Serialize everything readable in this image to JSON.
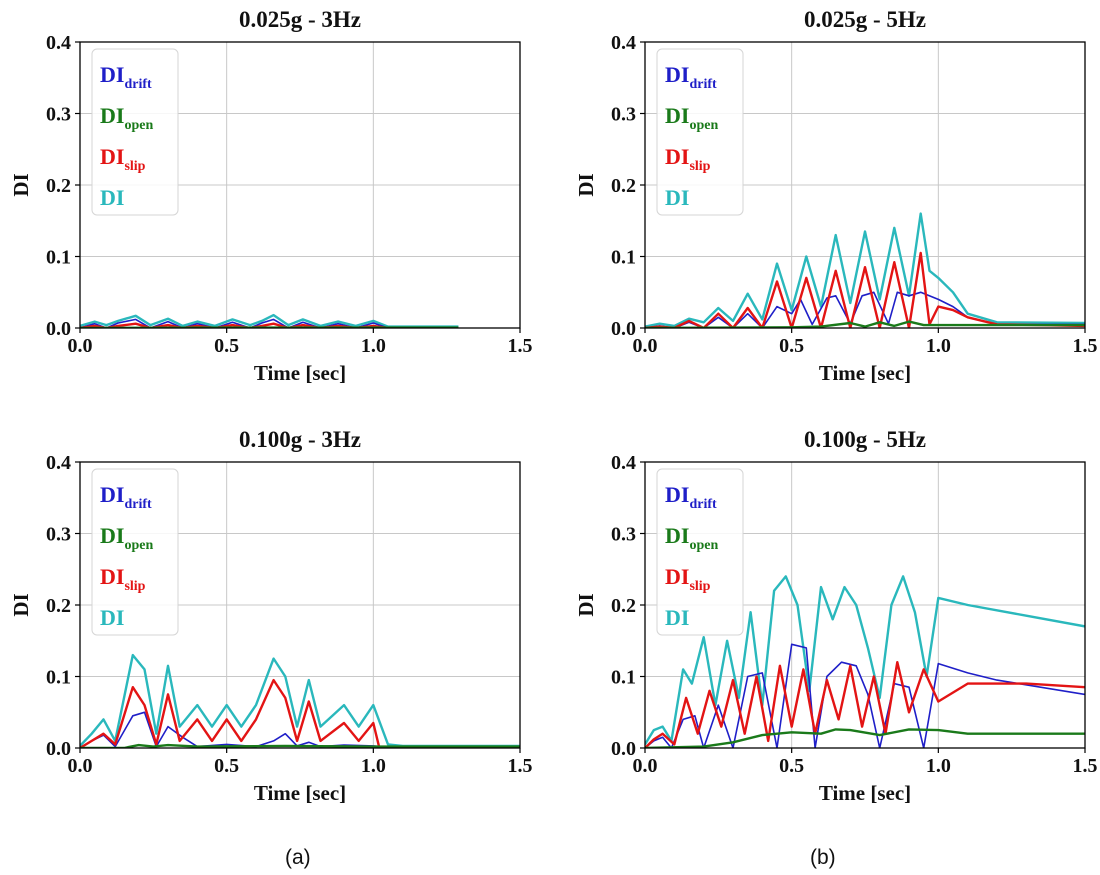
{
  "figure": {
    "captions": [
      "(a)",
      "(b)"
    ]
  },
  "colors": {
    "drift": "#1f1fc8",
    "open": "#1a7a1a",
    "slip": "#e31414",
    "total": "#2ab8bc"
  },
  "chart_data": [
    {
      "type": "line",
      "title": "0.025g - 3Hz",
      "xlabel": "Time [sec]",
      "ylabel": "DI",
      "xlim": [
        0,
        1.5
      ],
      "ylim": [
        0,
        0.4
      ],
      "xticks": [
        "0.0",
        "0.5",
        "1.0",
        "1.5"
      ],
      "yticks": [
        "0.0",
        "0.1",
        "0.2",
        "0.3",
        "0.4"
      ],
      "grid": true,
      "legend_position": "top-left",
      "series": [
        {
          "name": "DI_drift",
          "label_main": "DI",
          "label_sub": "drift",
          "key": "drift",
          "x": [
            0.0,
            0.05,
            0.09,
            0.13,
            0.19,
            0.24,
            0.3,
            0.35,
            0.4,
            0.46,
            0.52,
            0.58,
            0.62,
            0.66,
            0.71,
            0.76,
            0.82,
            0.88,
            0.94,
            1.0,
            1.05,
            1.1,
            1.29
          ],
          "y": [
            0.0,
            0.006,
            0.0,
            0.007,
            0.012,
            0.0,
            0.009,
            0.0,
            0.006,
            0.0,
            0.008,
            0.0,
            0.007,
            0.012,
            0.0,
            0.008,
            0.0,
            0.006,
            0.0,
            0.007,
            0.0,
            0.001,
            0.001
          ]
        },
        {
          "name": "DI_open",
          "label_main": "DI",
          "label_sub": "open",
          "key": "open",
          "x": [
            0.0,
            0.5,
            1.0,
            1.29
          ],
          "y": [
            0.0,
            0.0005,
            0.0005,
            0.0005
          ]
        },
        {
          "name": "DI_slip",
          "label_main": "DI",
          "label_sub": "slip",
          "key": "slip",
          "x": [
            0.0,
            0.05,
            0.09,
            0.13,
            0.19,
            0.24,
            0.3,
            0.35,
            0.4,
            0.46,
            0.52,
            0.58,
            0.62,
            0.66,
            0.71,
            0.76,
            0.82,
            0.88,
            0.94,
            1.0,
            1.05,
            1.29
          ],
          "y": [
            0.0,
            0.003,
            0.0,
            0.003,
            0.006,
            0.0,
            0.004,
            0.0,
            0.003,
            0.0,
            0.004,
            0.0,
            0.003,
            0.006,
            0.0,
            0.004,
            0.0,
            0.003,
            0.0,
            0.003,
            0.0,
            0.0
          ]
        },
        {
          "name": "DI",
          "label_main": "DI",
          "label_sub": "",
          "key": "total",
          "x": [
            0.0,
            0.05,
            0.09,
            0.13,
            0.19,
            0.24,
            0.3,
            0.35,
            0.4,
            0.46,
            0.52,
            0.58,
            0.62,
            0.66,
            0.71,
            0.76,
            0.82,
            0.88,
            0.94,
            1.0,
            1.05,
            1.1,
            1.29
          ],
          "y": [
            0.003,
            0.009,
            0.004,
            0.01,
            0.017,
            0.004,
            0.013,
            0.003,
            0.009,
            0.003,
            0.012,
            0.004,
            0.01,
            0.018,
            0.004,
            0.012,
            0.003,
            0.009,
            0.003,
            0.01,
            0.002,
            0.002,
            0.002
          ]
        }
      ]
    },
    {
      "type": "line",
      "title": "0.025g - 5Hz",
      "xlabel": "Time [sec]",
      "ylabel": "DI",
      "xlim": [
        0,
        1.5
      ],
      "ylim": [
        0,
        0.4
      ],
      "xticks": [
        "0.0",
        "0.5",
        "1.0",
        "1.5"
      ],
      "yticks": [
        "0.0",
        "0.1",
        "0.2",
        "0.3",
        "0.4"
      ],
      "grid": true,
      "legend_position": "top-left",
      "series": [
        {
          "name": "DI_drift",
          "label_main": "DI",
          "label_sub": "drift",
          "key": "drift",
          "x": [
            0.0,
            0.05,
            0.1,
            0.15,
            0.2,
            0.25,
            0.3,
            0.35,
            0.4,
            0.45,
            0.5,
            0.53,
            0.57,
            0.62,
            0.65,
            0.7,
            0.74,
            0.78,
            0.83,
            0.86,
            0.9,
            0.94,
            1.0,
            1.05,
            1.1,
            1.2,
            1.5
          ],
          "y": [
            0.0,
            0.003,
            0.0,
            0.008,
            0.0,
            0.015,
            0.0,
            0.02,
            0.0,
            0.03,
            0.02,
            0.04,
            0.005,
            0.042,
            0.045,
            0.006,
            0.045,
            0.05,
            0.006,
            0.05,
            0.045,
            0.05,
            0.04,
            0.03,
            0.015,
            0.005,
            0.005
          ]
        },
        {
          "name": "DI_open",
          "label_main": "DI",
          "label_sub": "open",
          "key": "open",
          "x": [
            0.0,
            0.5,
            0.6,
            0.7,
            0.75,
            0.8,
            0.85,
            0.9,
            0.95,
            1.0,
            1.2,
            1.5
          ],
          "y": [
            0.0,
            0.001,
            0.002,
            0.007,
            0.002,
            0.008,
            0.003,
            0.009,
            0.004,
            0.004,
            0.004,
            0.004
          ]
        },
        {
          "name": "DI_slip",
          "label_main": "DI",
          "label_sub": "slip",
          "key": "slip",
          "x": [
            0.0,
            0.05,
            0.1,
            0.15,
            0.2,
            0.25,
            0.3,
            0.35,
            0.4,
            0.45,
            0.5,
            0.55,
            0.6,
            0.65,
            0.7,
            0.75,
            0.8,
            0.85,
            0.9,
            0.94,
            0.97,
            1.0,
            1.05,
            1.1,
            1.2,
            1.5
          ],
          "y": [
            0.0,
            0.002,
            0.0,
            0.01,
            0.0,
            0.02,
            0.0,
            0.028,
            0.0,
            0.065,
            0.0,
            0.07,
            0.0,
            0.08,
            0.0,
            0.085,
            0.0,
            0.092,
            0.0,
            0.105,
            0.005,
            0.03,
            0.025,
            0.015,
            0.005,
            0.003
          ]
        },
        {
          "name": "DI",
          "label_main": "DI",
          "label_sub": "",
          "key": "total",
          "x": [
            0.0,
            0.05,
            0.1,
            0.15,
            0.2,
            0.25,
            0.3,
            0.35,
            0.4,
            0.45,
            0.5,
            0.55,
            0.6,
            0.65,
            0.7,
            0.75,
            0.8,
            0.85,
            0.9,
            0.94,
            0.97,
            1.0,
            1.05,
            1.1,
            1.2,
            1.5
          ],
          "y": [
            0.002,
            0.006,
            0.003,
            0.013,
            0.008,
            0.028,
            0.01,
            0.048,
            0.012,
            0.09,
            0.025,
            0.1,
            0.03,
            0.13,
            0.035,
            0.135,
            0.04,
            0.14,
            0.045,
            0.16,
            0.08,
            0.07,
            0.05,
            0.02,
            0.008,
            0.007
          ]
        }
      ]
    },
    {
      "type": "line",
      "title": "0.100g - 3Hz",
      "xlabel": "Time [sec]",
      "ylabel": "DI",
      "xlim": [
        0,
        1.5
      ],
      "ylim": [
        0,
        0.4
      ],
      "xticks": [
        "0.0",
        "0.5",
        "1.0",
        "1.5"
      ],
      "yticks": [
        "0.0",
        "0.1",
        "0.2",
        "0.3",
        "0.4"
      ],
      "grid": true,
      "legend_position": "top-left",
      "series": [
        {
          "name": "DI_drift",
          "label_main": "DI",
          "label_sub": "drift",
          "key": "drift",
          "x": [
            0.0,
            0.04,
            0.08,
            0.12,
            0.18,
            0.22,
            0.26,
            0.3,
            0.35,
            0.4,
            0.5,
            0.6,
            0.66,
            0.7,
            0.74,
            0.78,
            0.82,
            0.9,
            1.0,
            1.05,
            1.5
          ],
          "y": [
            0.0,
            0.01,
            0.018,
            0.002,
            0.045,
            0.05,
            0.002,
            0.03,
            0.015,
            0.002,
            0.005,
            0.002,
            0.01,
            0.02,
            0.003,
            0.008,
            0.002,
            0.004,
            0.003,
            0.001,
            0.001
          ]
        },
        {
          "name": "DI_open",
          "label_main": "DI",
          "label_sub": "open",
          "key": "open",
          "x": [
            0.0,
            0.15,
            0.2,
            0.25,
            0.3,
            0.4,
            0.7,
            1.0,
            1.5
          ],
          "y": [
            0.0,
            0.0,
            0.004,
            0.002,
            0.004,
            0.002,
            0.003,
            0.002,
            0.002
          ]
        },
        {
          "name": "DI_slip",
          "label_main": "DI",
          "label_sub": "slip",
          "key": "slip",
          "x": [
            0.0,
            0.04,
            0.08,
            0.12,
            0.18,
            0.22,
            0.26,
            0.3,
            0.34,
            0.4,
            0.45,
            0.5,
            0.55,
            0.6,
            0.66,
            0.7,
            0.74,
            0.78,
            0.82,
            0.9,
            0.95,
            1.0,
            1.02,
            1.5
          ],
          "y": [
            0.0,
            0.01,
            0.02,
            0.005,
            0.085,
            0.06,
            0.005,
            0.075,
            0.01,
            0.04,
            0.01,
            0.04,
            0.01,
            0.04,
            0.095,
            0.07,
            0.01,
            0.065,
            0.01,
            0.035,
            0.01,
            0.035,
            0.001,
            0.001
          ]
        },
        {
          "name": "DI",
          "label_main": "DI",
          "label_sub": "",
          "key": "total",
          "x": [
            0.0,
            0.04,
            0.08,
            0.12,
            0.18,
            0.22,
            0.26,
            0.3,
            0.34,
            0.4,
            0.45,
            0.5,
            0.55,
            0.6,
            0.66,
            0.7,
            0.74,
            0.78,
            0.82,
            0.9,
            0.95,
            1.0,
            1.05,
            1.1,
            1.5
          ],
          "y": [
            0.003,
            0.02,
            0.04,
            0.01,
            0.13,
            0.11,
            0.02,
            0.115,
            0.03,
            0.06,
            0.03,
            0.06,
            0.03,
            0.06,
            0.125,
            0.1,
            0.03,
            0.095,
            0.03,
            0.06,
            0.03,
            0.06,
            0.005,
            0.003,
            0.003
          ]
        }
      ]
    },
    {
      "type": "line",
      "title": "0.100g - 5Hz",
      "xlabel": "Time [sec]",
      "ylabel": "DI",
      "xlim": [
        0,
        1.5
      ],
      "ylim": [
        0,
        0.4
      ],
      "xticks": [
        "0.0",
        "0.5",
        "1.0",
        "1.5"
      ],
      "yticks": [
        "0.0",
        "0.1",
        "0.2",
        "0.3",
        "0.4"
      ],
      "grid": true,
      "legend_position": "top-left",
      "series": [
        {
          "name": "DI_drift",
          "label_main": "DI",
          "label_sub": "drift",
          "key": "drift",
          "x": [
            0.0,
            0.03,
            0.06,
            0.09,
            0.13,
            0.17,
            0.2,
            0.25,
            0.3,
            0.35,
            0.4,
            0.45,
            0.5,
            0.55,
            0.58,
            0.62,
            0.67,
            0.72,
            0.76,
            0.8,
            0.85,
            0.9,
            0.95,
            1.0,
            1.1,
            1.2,
            1.5
          ],
          "y": [
            0.0,
            0.01,
            0.015,
            0.0,
            0.04,
            0.045,
            0.0,
            0.06,
            0.0,
            0.1,
            0.105,
            0.0,
            0.145,
            0.14,
            0.0,
            0.1,
            0.12,
            0.115,
            0.075,
            0.0,
            0.09,
            0.085,
            0.0,
            0.118,
            0.105,
            0.095,
            0.075
          ]
        },
        {
          "name": "DI_open",
          "label_main": "DI",
          "label_sub": "open",
          "key": "open",
          "x": [
            0.0,
            0.2,
            0.3,
            0.4,
            0.5,
            0.6,
            0.65,
            0.7,
            0.8,
            0.9,
            1.0,
            1.1,
            1.5
          ],
          "y": [
            0.0,
            0.002,
            0.008,
            0.018,
            0.022,
            0.02,
            0.026,
            0.025,
            0.018,
            0.026,
            0.025,
            0.02,
            0.02
          ]
        },
        {
          "name": "DI_slip",
          "label_main": "DI",
          "label_sub": "slip",
          "key": "slip",
          "x": [
            0.0,
            0.03,
            0.06,
            0.1,
            0.14,
            0.18,
            0.22,
            0.26,
            0.3,
            0.34,
            0.38,
            0.42,
            0.46,
            0.5,
            0.54,
            0.58,
            0.62,
            0.66,
            0.7,
            0.74,
            0.78,
            0.82,
            0.86,
            0.9,
            0.95,
            1.0,
            1.1,
            1.3,
            1.5
          ],
          "y": [
            0.0,
            0.012,
            0.02,
            0.005,
            0.07,
            0.02,
            0.08,
            0.03,
            0.095,
            0.02,
            0.1,
            0.01,
            0.115,
            0.03,
            0.11,
            0.02,
            0.095,
            0.04,
            0.115,
            0.03,
            0.1,
            0.02,
            0.12,
            0.05,
            0.11,
            0.065,
            0.09,
            0.09,
            0.085
          ]
        },
        {
          "name": "DI",
          "label_main": "DI",
          "label_sub": "",
          "key": "total",
          "x": [
            0.0,
            0.03,
            0.06,
            0.09,
            0.13,
            0.16,
            0.2,
            0.24,
            0.28,
            0.32,
            0.36,
            0.4,
            0.44,
            0.48,
            0.52,
            0.56,
            0.6,
            0.64,
            0.68,
            0.72,
            0.76,
            0.8,
            0.84,
            0.88,
            0.92,
            0.96,
            1.0,
            1.1,
            1.3,
            1.5
          ],
          "y": [
            0.005,
            0.025,
            0.03,
            0.01,
            0.11,
            0.09,
            0.155,
            0.06,
            0.15,
            0.07,
            0.19,
            0.06,
            0.22,
            0.24,
            0.2,
            0.08,
            0.225,
            0.18,
            0.225,
            0.2,
            0.14,
            0.07,
            0.2,
            0.24,
            0.19,
            0.1,
            0.21,
            0.2,
            0.185,
            0.17
          ]
        }
      ]
    }
  ]
}
